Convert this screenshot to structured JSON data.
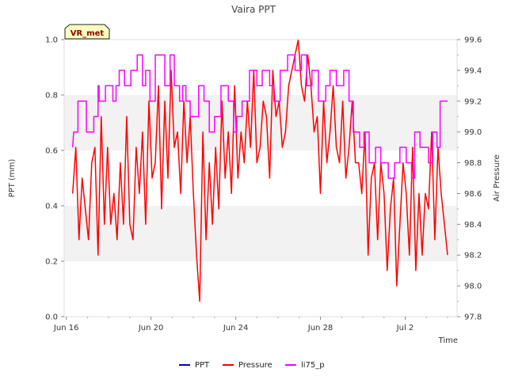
{
  "chart_data": {
    "type": "line",
    "title": "Vaira PPT",
    "site_label": "VR_met",
    "xlabel": "Time",
    "ylabel_left": "PPT (mm)",
    "ylabel_right": "Air Pressure",
    "x_range_days": [
      -0.1,
      18.45
    ],
    "x_ticks": [
      {
        "label": "Jun 16",
        "day": 0
      },
      {
        "label": "Jun 20",
        "day": 4
      },
      {
        "label": "Jun 24",
        "day": 8
      },
      {
        "label": "Jun 28",
        "day": 12
      },
      {
        "label": "Jul 2",
        "day": 16
      }
    ],
    "ylim_left": [
      0,
      1
    ],
    "yticks_left": [
      "0.0",
      "0.2",
      "0.4",
      "0.6",
      "0.8",
      "1.0"
    ],
    "ylim_right": [
      97.8,
      99.6
    ],
    "yticks_right": [
      "97.8",
      "98.0",
      "98.2",
      "98.4",
      "98.6",
      "98.8",
      "99.0",
      "99.2",
      "99.4",
      "99.6"
    ],
    "bands_left": [
      [
        0.2,
        0.4
      ],
      [
        0.6,
        0.8
      ]
    ],
    "legend": [
      "PPT",
      "Pressure",
      "li75_p"
    ],
    "colors": {
      "PPT": "#0000cc",
      "Pressure": "#ff0000",
      "li75_p": "#ff00ff",
      "band": "#f2f2f2",
      "label_bg": "#ffffc0"
    },
    "series": [
      {
        "name": "PPT",
        "axis": "left",
        "days": [
          0.3,
          18.0
        ],
        "values": [
          0.0,
          0.0
        ]
      },
      {
        "name": "Pressure",
        "axis": "right",
        "days": [
          0.3,
          0.45,
          0.6,
          0.75,
          0.9,
          1.05,
          1.2,
          1.35,
          1.5,
          1.65,
          1.8,
          1.95,
          2.1,
          2.25,
          2.4,
          2.55,
          2.7,
          2.85,
          3.0,
          3.15,
          3.3,
          3.45,
          3.6,
          3.75,
          3.9,
          4.05,
          4.2,
          4.35,
          4.5,
          4.65,
          4.8,
          4.95,
          5.1,
          5.25,
          5.4,
          5.55,
          5.7,
          5.85,
          6.0,
          6.15,
          6.3,
          6.45,
          6.6,
          6.75,
          6.9,
          7.05,
          7.2,
          7.35,
          7.5,
          7.65,
          7.8,
          7.95,
          8.1,
          8.25,
          8.4,
          8.55,
          8.7,
          8.85,
          9.0,
          9.15,
          9.3,
          9.45,
          9.6,
          9.75,
          9.9,
          10.05,
          10.2,
          10.35,
          10.5,
          10.65,
          10.8,
          10.95,
          11.1,
          11.25,
          11.4,
          11.55,
          11.7,
          11.85,
          12.0,
          12.15,
          12.3,
          12.45,
          12.6,
          12.75,
          12.9,
          13.05,
          13.2,
          13.35,
          13.5,
          13.65,
          13.8,
          13.95,
          14.1,
          14.25,
          14.4,
          14.55,
          14.7,
          14.85,
          15.0,
          15.15,
          15.3,
          15.45,
          15.6,
          15.75,
          15.9,
          16.05,
          16.2,
          16.35,
          16.5,
          16.65,
          16.8,
          16.95,
          17.1,
          17.25,
          17.4,
          17.55,
          17.7,
          17.85,
          18.0
        ],
        "values": [
          98.6,
          98.9,
          98.3,
          98.7,
          98.5,
          98.3,
          98.8,
          98.9,
          98.2,
          99.1,
          98.4,
          98.9,
          98.4,
          98.6,
          98.3,
          98.8,
          98.4,
          99.1,
          98.4,
          98.3,
          98.9,
          98.6,
          99.0,
          98.4,
          99.2,
          98.7,
          98.8,
          99.3,
          98.5,
          99.2,
          98.7,
          99.4,
          98.9,
          99.0,
          98.6,
          99.2,
          98.8,
          99.1,
          98.6,
          98.2,
          97.9,
          99.0,
          98.3,
          98.8,
          98.4,
          98.9,
          98.5,
          99.2,
          98.7,
          99.0,
          98.6,
          99.3,
          98.7,
          99.0,
          98.8,
          99.2,
          98.9,
          99.4,
          98.8,
          98.9,
          99.2,
          99.1,
          98.7,
          99.4,
          99.1,
          99.2,
          98.9,
          99.0,
          99.3,
          99.4,
          99.5,
          99.6,
          99.3,
          99.2,
          99.5,
          99.3,
          99.0,
          99.1,
          98.6,
          99.2,
          98.8,
          99.0,
          99.3,
          98.9,
          98.8,
          99.2,
          98.7,
          98.9,
          99.2,
          98.8,
          98.8,
          98.6,
          99.0,
          98.2,
          98.7,
          98.8,
          98.3,
          98.8,
          98.6,
          98.1,
          98.5,
          98.7,
          98.0,
          98.4,
          98.8,
          98.6,
          98.2,
          98.9,
          98.1,
          98.6,
          98.2,
          98.6,
          98.5,
          99.0,
          98.3,
          98.9,
          98.6,
          98.4,
          98.2
        ]
      },
      {
        "name": "li75_p",
        "axis": "right",
        "days": [
          0.3,
          0.35,
          0.55,
          0.55,
          0.95,
          0.95,
          1.3,
          1.3,
          1.5,
          1.5,
          1.55,
          1.55,
          1.85,
          1.85,
          2.2,
          2.2,
          2.35,
          2.35,
          2.5,
          2.5,
          2.75,
          2.75,
          3.05,
          3.05,
          3.35,
          3.35,
          3.6,
          3.6,
          3.75,
          3.75,
          3.95,
          3.95,
          4.2,
          4.2,
          4.65,
          4.65,
          4.9,
          4.9,
          5.1,
          5.1,
          5.35,
          5.35,
          5.5,
          5.5,
          5.65,
          5.65,
          5.85,
          5.85,
          6.25,
          6.25,
          6.5,
          6.5,
          6.75,
          6.75,
          7.0,
          7.0,
          7.3,
          7.3,
          7.65,
          7.65,
          7.9,
          7.9,
          8.05,
          8.05,
          8.3,
          8.3,
          8.65,
          8.65,
          9.0,
          9.0,
          9.25,
          9.25,
          9.6,
          9.6,
          9.8,
          9.8,
          10.1,
          10.1,
          10.45,
          10.45,
          10.8,
          10.8,
          11.1,
          11.1,
          11.35,
          11.35,
          11.6,
          11.6,
          11.9,
          11.9,
          12.25,
          12.25,
          12.45,
          12.45,
          12.75,
          12.75,
          13.1,
          13.1,
          13.35,
          13.35,
          13.55,
          13.55,
          13.85,
          13.85,
          14.05,
          14.05,
          14.3,
          14.3,
          14.6,
          14.6,
          14.85,
          14.85,
          15.2,
          15.2,
          15.5,
          15.5,
          15.75,
          15.75,
          16.05,
          16.05,
          16.3,
          16.3,
          16.45,
          16.45,
          16.7,
          16.7,
          17.1,
          17.1,
          17.3,
          17.3,
          17.5,
          17.5,
          17.65,
          17.65,
          18.0
        ],
        "values": [
          98.9,
          99.0,
          99.0,
          99.2,
          99.2,
          99.0,
          99.0,
          99.1,
          99.1,
          99.3,
          99.3,
          99.2,
          99.2,
          99.3,
          99.3,
          99.2,
          99.2,
          99.3,
          99.3,
          99.4,
          99.4,
          99.3,
          99.3,
          99.4,
          99.4,
          99.5,
          99.5,
          99.3,
          99.3,
          99.4,
          99.4,
          99.2,
          99.2,
          99.5,
          99.5,
          99.3,
          99.3,
          99.5,
          99.5,
          99.3,
          99.3,
          99.2,
          99.2,
          99.3,
          99.3,
          99.2,
          99.2,
          99.1,
          99.1,
          99.3,
          99.3,
          99.2,
          99.2,
          99.0,
          99.0,
          99.1,
          99.1,
          99.3,
          99.3,
          99.2,
          99.2,
          99.0,
          99.0,
          99.1,
          99.1,
          99.2,
          99.2,
          99.4,
          99.4,
          99.3,
          99.3,
          99.4,
          99.4,
          99.3,
          99.3,
          99.2,
          99.2,
          99.4,
          99.4,
          99.5,
          99.5,
          99.4,
          99.4,
          99.5,
          99.5,
          99.3,
          99.3,
          99.4,
          99.4,
          99.2,
          99.2,
          99.3,
          99.3,
          99.4,
          99.4,
          99.3,
          99.3,
          99.4,
          99.4,
          99.2,
          99.2,
          99.0,
          99.0,
          98.9,
          98.9,
          99.0,
          99.0,
          98.8,
          98.8,
          98.9,
          98.9,
          98.8,
          98.8,
          98.7,
          98.7,
          98.8,
          98.8,
          98.9,
          98.9,
          98.8,
          98.8,
          98.7,
          98.7,
          99.0,
          99.0,
          98.9,
          98.9,
          98.8,
          98.8,
          99.0,
          99.0,
          98.9,
          98.9,
          99.2,
          99.2
        ]
      }
    ]
  }
}
